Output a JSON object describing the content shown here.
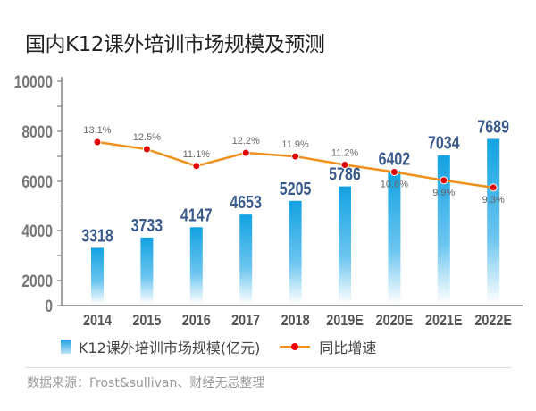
{
  "chart_data": {
    "type": "bar+line",
    "title": "国内K12课外培训市场规模及预测",
    "categories": [
      "2014",
      "2015",
      "2016",
      "2017",
      "2018",
      "2019E",
      "2020E",
      "2021E",
      "2022E"
    ],
    "series": [
      {
        "name": "K12课外培训市场规模(亿元)",
        "type": "bar",
        "values": [
          3318,
          3733,
          4147,
          4653,
          5205,
          5786,
          6402,
          7034,
          7689
        ],
        "color": "#1aa0e0"
      },
      {
        "name": "同比增速",
        "type": "line",
        "values": [
          13.1,
          12.5,
          11.1,
          12.2,
          11.9,
          11.2,
          10.6,
          9.9,
          9.3
        ],
        "labels": [
          "13.1%",
          "12.5%",
          "11.1%",
          "12.2%",
          "11.9%",
          "11.2%",
          "10.6%",
          "9.9%",
          "9.3%"
        ],
        "color": "#f0901a",
        "marker_color": "#e00000"
      }
    ],
    "y_ticks": [
      "0",
      "2000",
      "4000",
      "6000",
      "8000",
      "10000"
    ],
    "ylim": [
      0,
      10000
    ],
    "grid": false,
    "legend": "bottom"
  },
  "source": "数据来源：Frost&sullivan、财经无忌整理"
}
